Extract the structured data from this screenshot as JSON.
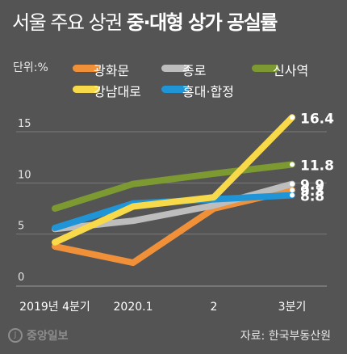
{
  "header": {
    "title_regular": "서울 주요 상권",
    "title_bold": "중·대형 상가 공실률"
  },
  "footer": {
    "source": "자료: 한국부동산원",
    "logo_text": "중앙일보"
  },
  "chart_data": {
    "type": "line",
    "unit_label": "단위:%",
    "categories": [
      "2019년 4분기",
      "2020.1",
      "2",
      "3분기"
    ],
    "ylim": [
      0,
      18
    ],
    "yticks": [
      0,
      5,
      10,
      15
    ],
    "grid": true,
    "legend_position": "top",
    "series": [
      {
        "name": "광화문",
        "color": "#f0913a",
        "values": [
          3.8,
          2.2,
          7.5,
          9.3
        ],
        "end_label": "9.3"
      },
      {
        "name": "종로",
        "color": "#bdbdbd",
        "values": [
          5.5,
          6.3,
          7.8,
          9.9
        ],
        "end_label": "9.9"
      },
      {
        "name": "신사역",
        "color": "#7c9a31",
        "values": [
          7.5,
          9.9,
          10.9,
          11.8
        ],
        "end_label": "11.8"
      },
      {
        "name": "강남대로",
        "color": "#f8d94a",
        "values": [
          4.2,
          7.7,
          8.6,
          16.4
        ],
        "end_label": "16.4"
      },
      {
        "name": "홍대·합정",
        "color": "#1f95d8",
        "values": [
          5.6,
          8.0,
          8.4,
          8.8
        ],
        "end_label": "8.8"
      }
    ]
  }
}
